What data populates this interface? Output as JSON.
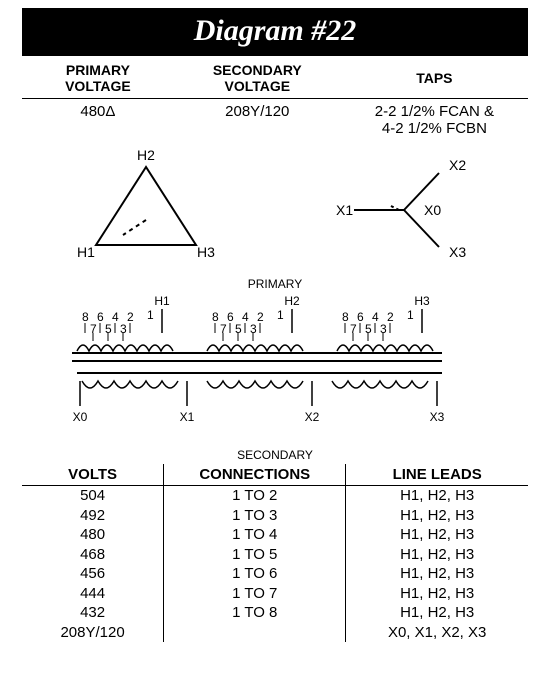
{
  "title": "Diagram #22",
  "top_headers": {
    "primary": "PRIMARY VOLTAGE",
    "secondary": "SECONDARY VOLTAGE",
    "taps": "TAPS"
  },
  "top_values": {
    "primary": "480Δ",
    "secondary": "208Y/120",
    "taps_line1": "2-2 1/2% FCAN &",
    "taps_line2": "4-2 1/2% FCBN"
  },
  "delta_labels": {
    "top": "H2",
    "left": "H1",
    "right": "H3"
  },
  "wye_labels": {
    "top": "X2",
    "left": "X1",
    "center": "X0",
    "bottom": "X3"
  },
  "primary_section_label": "PRIMARY",
  "secondary_section_label": "SECONDARY",
  "primary_terminals": [
    "H1",
    "H2",
    "H3"
  ],
  "primary_tap_numbers_top": [
    "8",
    "6",
    "4",
    "2"
  ],
  "primary_tap_numbers_bot": [
    "7",
    "5",
    "3"
  ],
  "primary_tap1": "1",
  "secondary_terminals": [
    "X0",
    "X1",
    "X2",
    "X3"
  ],
  "bottom_headers": {
    "volts": "VOLTS",
    "connections": "CONNECTIONS",
    "line_leads": "LINE LEADS"
  },
  "rows": [
    {
      "volts": "504",
      "conn": "1 TO 2",
      "leads": "H1, H2, H3"
    },
    {
      "volts": "492",
      "conn": "1 TO 3",
      "leads": "H1, H2, H3"
    },
    {
      "volts": "480",
      "conn": "1 TO 4",
      "leads": "H1, H2, H3"
    },
    {
      "volts": "468",
      "conn": "1 TO 5",
      "leads": "H1, H2, H3"
    },
    {
      "volts": "456",
      "conn": "1 TO 6",
      "leads": "H1, H2, H3"
    },
    {
      "volts": "444",
      "conn": "1 TO 7",
      "leads": "H1, H2, H3"
    },
    {
      "volts": "432",
      "conn": "1 TO 8",
      "leads": "H1, H2, H3"
    },
    {
      "volts": "208Y/120",
      "conn": "",
      "leads": "X0, X1, X2, X3"
    }
  ],
  "colors": {
    "line": "#000000",
    "bg": "#ffffff"
  }
}
